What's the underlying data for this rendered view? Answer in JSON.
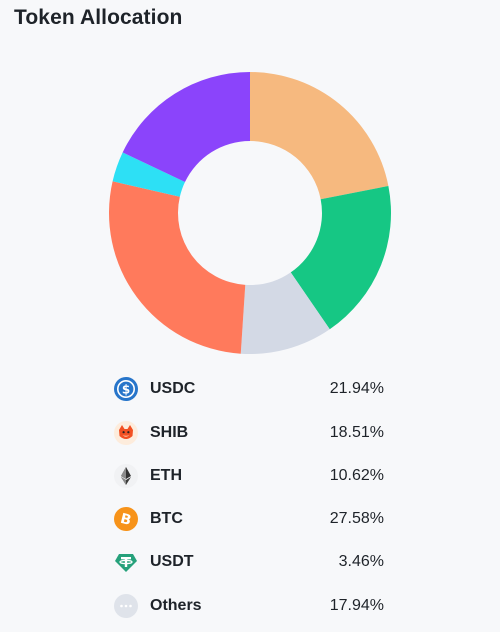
{
  "title": "Token Allocation",
  "chart_data": {
    "type": "pie",
    "style": "donut",
    "title": "Token Allocation",
    "categories": [
      "USDC",
      "SHIB",
      "ETH",
      "BTC",
      "USDT",
      "Others"
    ],
    "values": [
      21.94,
      18.51,
      10.62,
      27.58,
      3.46,
      17.94
    ],
    "unit": "%",
    "colors": [
      "#f6b97f",
      "#16c784",
      "#d3d9e5",
      "#ff7a5c",
      "#2de0f5",
      "#8b44fb"
    ],
    "legend": "bottom"
  },
  "legend": [
    {
      "symbol": "USDC",
      "value_text": "21.94%",
      "icon": "usdc-icon",
      "icon_color": "#2775ca"
    },
    {
      "symbol": "SHIB",
      "value_text": "18.51%",
      "icon": "shib-icon",
      "icon_color": "#f25022"
    },
    {
      "symbol": "ETH",
      "value_text": "10.62%",
      "icon": "eth-icon",
      "icon_color": "#343434"
    },
    {
      "symbol": "BTC",
      "value_text": "27.58%",
      "icon": "btc-icon",
      "icon_color": "#f7931a"
    },
    {
      "symbol": "USDT",
      "value_text": "3.46%",
      "icon": "usdt-icon",
      "icon_color": "#26a17b"
    },
    {
      "symbol": "Others",
      "value_text": "17.94%",
      "icon": "others-icon",
      "icon_color": "#dfe3ea"
    }
  ]
}
